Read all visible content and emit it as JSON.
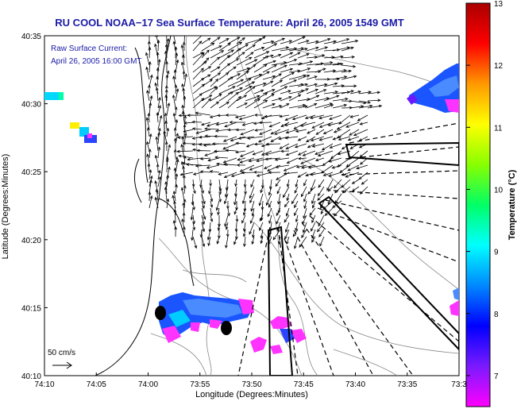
{
  "title": "RU COOL  NOAA−17  Sea Surface Temperature:  April 26, 2005 1549 GMT",
  "current_label": {
    "line1": "Raw Surface Current:",
    "line2": "April 26, 2005 16:00 GMT"
  },
  "scale": {
    "label": "50 cm/s",
    "arrow_icon": "right-arrow-icon"
  },
  "axes": {
    "xlabel": "Longitude (Degrees:Minutes)",
    "ylabel": "Latitude (Degrees:Minutes)",
    "xticks": [
      "74:10",
      "74:05",
      "74:00",
      "73:55",
      "73:50",
      "73:45",
      "73:40",
      "73:35",
      "73:3"
    ],
    "yticks": [
      "40:35",
      "40:30",
      "40:25",
      "40:20",
      "40:15",
      "40:10"
    ]
  },
  "colorbar": {
    "title": "Temperature (°C)",
    "ticks": [
      "13",
      "12",
      "11",
      "10",
      "9",
      "8",
      "7"
    ],
    "min": 6.5,
    "max": 13,
    "colors": [
      "#ff00ff",
      "#7a1aff",
      "#0000ff",
      "#0088ff",
      "#00ffff",
      "#00ff66",
      "#88ff00",
      "#ffff00",
      "#ff9900",
      "#ff0000",
      "#aa0000"
    ]
  },
  "markers": {
    "icon": "station-marker-icon"
  }
}
